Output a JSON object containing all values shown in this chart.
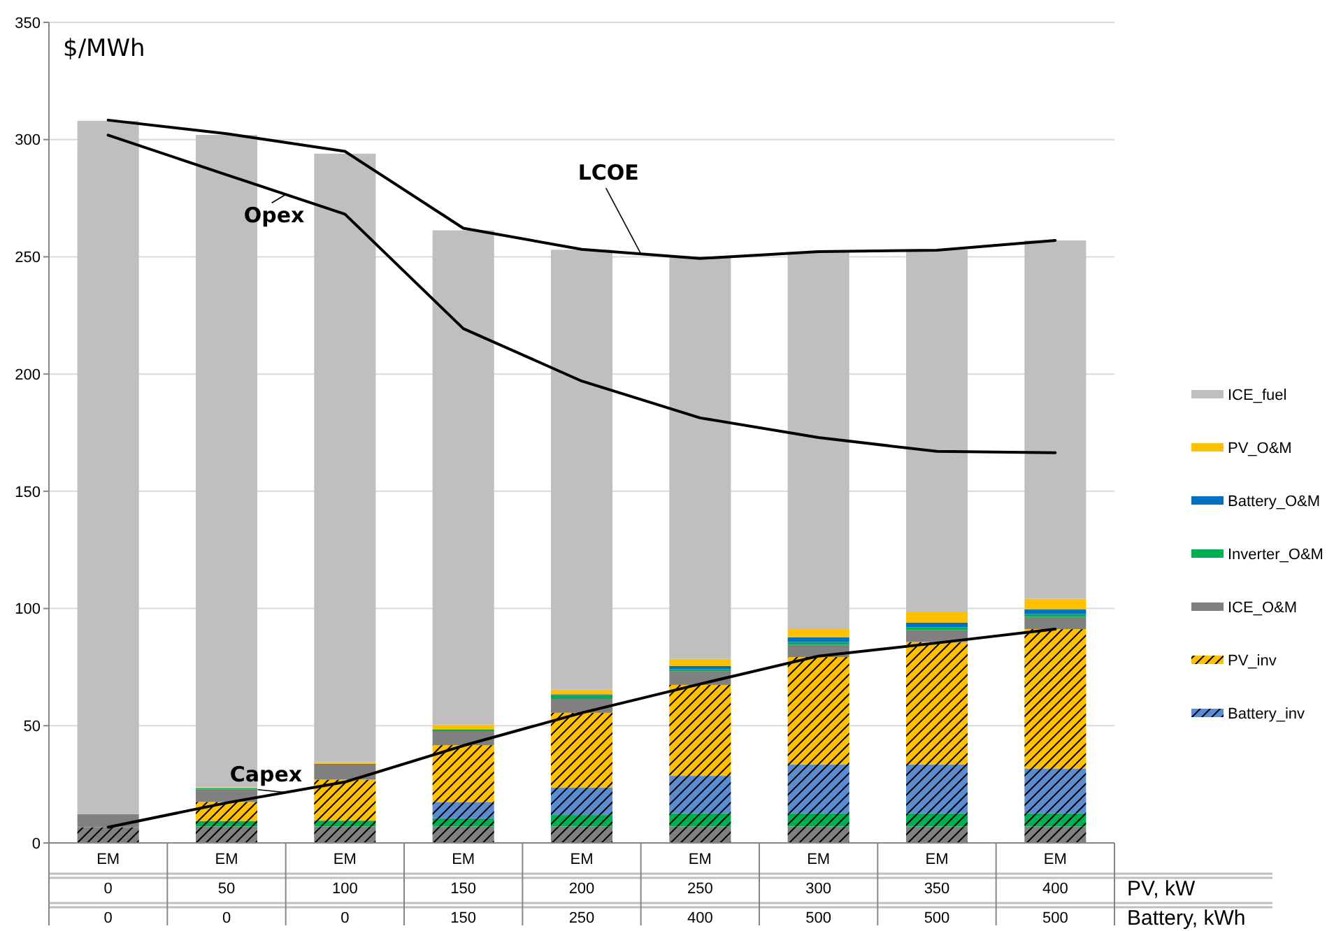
{
  "chart_data": {
    "type": "bar",
    "stacked": true,
    "ylabel": "$/MWh",
    "categories": [
      "EM\n0\n0",
      "EM\n50\n0",
      "EM\n100\n0",
      "EM\n150\n150",
      "EM\n200\n250",
      "EM\n250\n400",
      "EM\n300\n500",
      "EM\n350\n500",
      "EM\n400\n500"
    ],
    "annotations": [
      "PV, kW",
      "Battery, kWh"
    ],
    "ylim": [
      0,
      350
    ],
    "yticks": [
      0,
      50,
      100,
      150,
      200,
      250,
      300,
      350
    ],
    "grid": "y",
    "legend": "right",
    "marker": "none",
    "line_style": "solid",
    "series": [
      {
        "color": "#808080",
        "values": [
          6.7,
          7,
          7,
          7,
          7,
          7,
          7,
          7,
          7
        ]
      },
      {
        "color": "#00b050",
        "values": [
          0,
          2.4,
          2.5,
          3.5,
          4.9,
          5.7,
          5.7,
          5.7,
          5.7
        ]
      },
      {
        "name": "Battery_inv",
        "color": "#5b8bd0",
        "values": [
          0,
          0,
          0,
          7,
          11.8,
          15.9,
          20.7,
          20.7,
          18.9
        ]
      },
      {
        "name": "PV_inv",
        "color": "#ffc000",
        "values": [
          0,
          8.1,
          17.5,
          24.2,
          31.8,
          38.8,
          45.9,
          52.3,
          59.6
        ]
      },
      {
        "name": "ICE_O&M",
        "color": "#808080",
        "values": [
          5.6,
          5.3,
          6.4,
          6,
          5.9,
          5.9,
          5.2,
          5.1,
          5.2
        ]
      },
      {
        "name": "Inverter_O&M",
        "color": "#00b050",
        "values": [
          0,
          0.6,
          0.3,
          0.8,
          1.6,
          0.8,
          1.2,
          1.2,
          1.2
        ]
      },
      {
        "name": "Battery_O&M",
        "color": "#0070c0",
        "values": [
          0,
          0,
          0,
          null,
          0.4,
          1.4,
          2,
          2,
          2
        ]
      },
      {
        "name": "PV_O&M",
        "color": "#ffc000",
        "values": [
          0,
          0.3,
          0.7,
          2,
          2,
          3,
          3.5,
          4.4,
          4.6
        ]
      },
      {
        "name": "ICE_fuel",
        "color": "#bfbfbf",
        "values": [
          295.7,
          278.3,
          259.6,
          210.8,
          187.6,
          171.5,
          160.8,
          154.6,
          152.8
        ]
      },
      {
        "name": "LCOE",
        "type": "line",
        "color": "#000000",
        "values": [
          308.3,
          302.5,
          295,
          262.2,
          253.2,
          249.3,
          252.2,
          252.8,
          257
        ]
      },
      {
        "name": "Opex",
        "type": "line",
        "color": "#000000",
        "values": [
          301.9,
          285,
          268.2,
          219.4,
          197,
          181.3,
          172.9,
          167,
          166.4
        ]
      },
      {
        "name": "Capex",
        "type": "line",
        "color": "#000000",
        "values": [
          6.7,
          17.1,
          26,
          41.5,
          55.5,
          67.8,
          79.7,
          85.3,
          91.2
        ]
      }
    ]
  }
}
